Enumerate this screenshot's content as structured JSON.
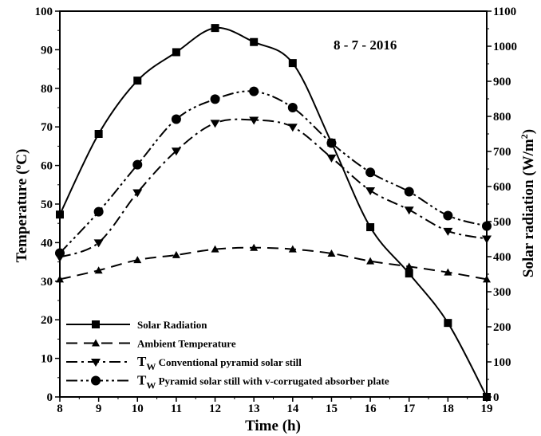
{
  "chart_data": {
    "type": "line",
    "annotation": "8 - 7 - 2016",
    "xlabel": "Time (h)",
    "ylabel_left": "Temperature (",
    "ylabel_left_sup": "o",
    "ylabel_left_end": "C)",
    "ylabel_right": "Solar radiation (W/m",
    "ylabel_right_sup": "2",
    "ylabel_right_end": ")",
    "x": [
      8,
      9,
      10,
      11,
      12,
      13,
      14,
      15,
      16,
      17,
      18,
      19
    ],
    "xlim": [
      8,
      19
    ],
    "ylim_left": [
      0,
      100
    ],
    "ylim_right": [
      0,
      1100
    ],
    "x_ticks": [
      "8",
      "9",
      "10",
      "11",
      "12",
      "13",
      "14",
      "15",
      "16",
      "17",
      "18",
      "19"
    ],
    "y_left_ticks": [
      "0",
      "10",
      "20",
      "30",
      "40",
      "50",
      "60",
      "70",
      "80",
      "90",
      "100"
    ],
    "y_right_ticks": [
      "0",
      "100",
      "200",
      "300",
      "400",
      "500",
      "600",
      "700",
      "800",
      "900",
      "1000",
      "1100"
    ],
    "series": [
      {
        "name": "Solar Radiation",
        "axis": "right",
        "marker": "square",
        "dash": "solid",
        "values": [
          520,
          750,
          902,
          983,
          1052,
          1012,
          952,
          725,
          484,
          352,
          211,
          0
        ]
      },
      {
        "name": "Ambient Temperature",
        "axis": "left",
        "marker": "triangle-up",
        "dash": "dashed",
        "values": [
          30.5,
          32.8,
          35.5,
          36.8,
          38.3,
          38.7,
          38.3,
          37.2,
          35.2,
          33.8,
          32.3,
          30.5
        ]
      },
      {
        "name": "Conventional pyramid solar still",
        "name_prefix": "T",
        "name_sub": "W",
        "axis": "left",
        "marker": "triangle-down",
        "dash": "dash-dot",
        "values": [
          36.2,
          40,
          53,
          63.8,
          71,
          71.8,
          70,
          62,
          53.5,
          48.5,
          43,
          41
        ]
      },
      {
        "name": "Pyramid solar still with v-corrugated absorber plate",
        "name_prefix": "T",
        "name_sub": "W",
        "axis": "left",
        "marker": "circle",
        "dash": "dash-dot-dot",
        "values": [
          37.3,
          48,
          60.2,
          72,
          77.2,
          79.2,
          75,
          65.8,
          58.2,
          53.2,
          47,
          44.3
        ]
      }
    ],
    "legend_position": "bottom-left"
  }
}
